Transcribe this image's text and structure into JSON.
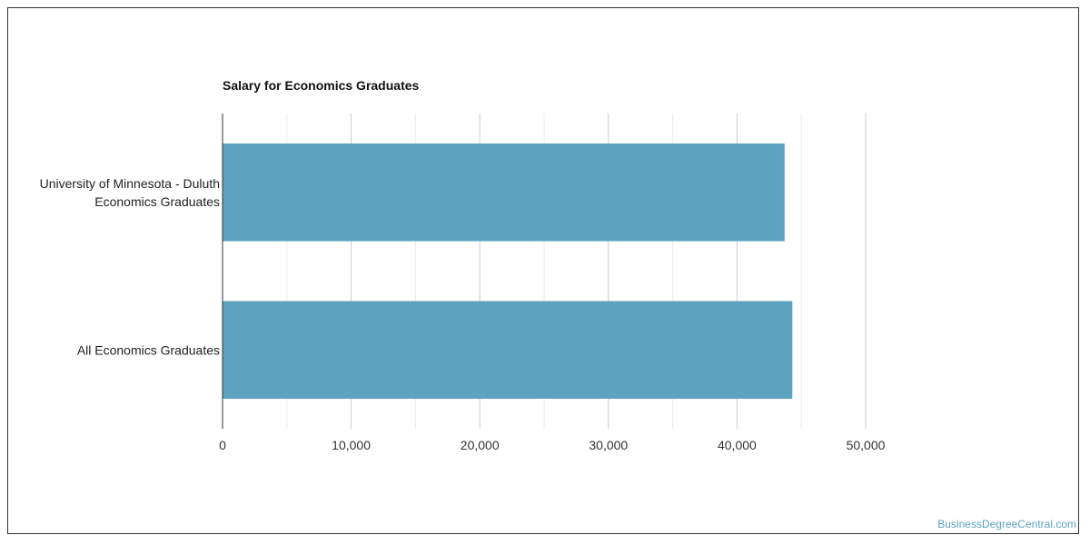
{
  "chart_data": {
    "type": "bar",
    "orientation": "horizontal",
    "title": "Salary for Economics Graduates",
    "categories": [
      [
        "University of Minnesota - Duluth",
        "Economics Graduates"
      ],
      [
        "All Economics Graduates"
      ]
    ],
    "values": [
      43700,
      44300
    ],
    "xlim": [
      0,
      50000
    ],
    "xticks": [
      0,
      10000,
      20000,
      30000,
      40000,
      50000
    ],
    "xtick_labels": [
      "0",
      "10,000",
      "20,000",
      "30,000",
      "40,000",
      "50,000"
    ],
    "grid": true,
    "bar_color": "#5da3bf",
    "xlabel": "",
    "ylabel": ""
  },
  "source": "BusinessDegreeCentral.com"
}
